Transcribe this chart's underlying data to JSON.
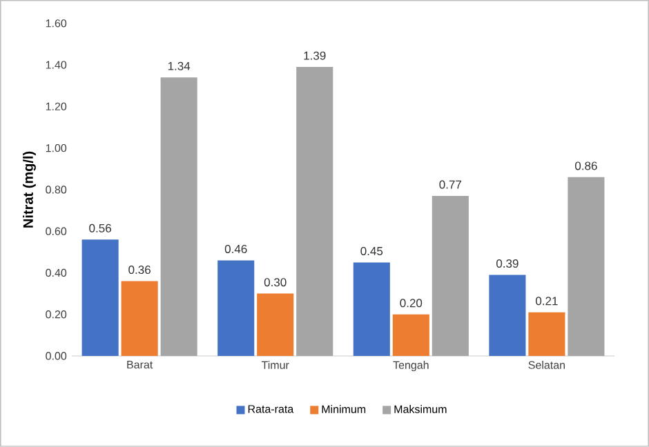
{
  "chart_data": {
    "type": "bar",
    "ylabel": "Nitrat (mg/l)",
    "categories": [
      "Barat",
      "Timur",
      "Tengah",
      "Selatan"
    ],
    "series": [
      {
        "name": "Rata-rata",
        "color": "#4472c4",
        "values": [
          0.56,
          0.46,
          0.45,
          0.39
        ],
        "value_labels": [
          "0.56",
          "0.46",
          "0.45",
          "0.39"
        ]
      },
      {
        "name": "Minimum",
        "color": "#ed7d31",
        "values": [
          0.36,
          0.3,
          0.2,
          0.21
        ],
        "value_labels": [
          "0.36",
          "0.30",
          "0.20",
          "0.21"
        ]
      },
      {
        "name": "Maksimum",
        "color": "#a5a5a5",
        "values": [
          1.34,
          1.39,
          0.77,
          0.86
        ],
        "value_labels": [
          "1.34",
          "1.39",
          "0.77",
          "0.86"
        ]
      }
    ],
    "ylim": [
      0,
      1.6
    ],
    "yticks": [
      {
        "value": 0,
        "label": "0.00"
      },
      {
        "value": 0.2,
        "label": "0.20"
      },
      {
        "value": 0.4,
        "label": "0.40"
      },
      {
        "value": 0.6,
        "label": "0.60"
      },
      {
        "value": 0.8,
        "label": "0.80"
      },
      {
        "value": 1.0,
        "label": "1.00"
      },
      {
        "value": 1.2,
        "label": "1.20"
      },
      {
        "value": 1.4,
        "label": "1.40"
      },
      {
        "value": 1.6,
        "label": "1.60"
      }
    ],
    "legend": "bottom"
  }
}
